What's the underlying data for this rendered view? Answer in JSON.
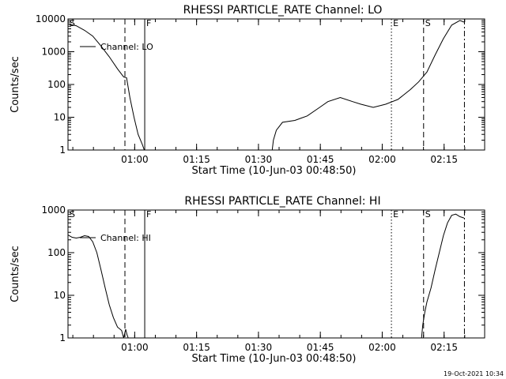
{
  "chart_data": [
    {
      "type": "line",
      "title": "RHESSI PARTICLE_RATE Channel: LO",
      "xlabel": "Start Time (10-Jun-03 00:48:50)",
      "ylabel": "Counts/sec",
      "xlim_min": [
        -5,
        96
      ],
      "ylim": [
        1,
        10000
      ],
      "y_scale": "log",
      "x_ticks": [
        {
          "label": "01:00",
          "min": 11.17
        },
        {
          "label": "01:15",
          "min": 26.17
        },
        {
          "label": "01:30",
          "min": 41.17
        },
        {
          "label": "01:45",
          "min": 56.17
        },
        {
          "label": "02:00",
          "min": 71.17
        },
        {
          "label": "02:15",
          "min": 86.17
        }
      ],
      "y_ticks": [
        {
          "label": "1",
          "v": 1
        },
        {
          "label": "10",
          "v": 10
        },
        {
          "label": "100",
          "v": 100
        },
        {
          "label": "1000",
          "v": 1000
        },
        {
          "label": "10000",
          "v": 10000
        }
      ],
      "legend": {
        "label": "Channel: LO",
        "position": "top-left"
      },
      "event_lines": [
        {
          "label": "S",
          "min": -5,
          "style": "dashdot"
        },
        {
          "label": "",
          "min": 8.8,
          "style": "dash"
        },
        {
          "label": "F",
          "min": 13.6,
          "style": "solid"
        },
        {
          "label": "E",
          "min": 73.4,
          "style": "dot"
        },
        {
          "label": "S",
          "min": 81.2,
          "style": "dash"
        },
        {
          "label": "",
          "min": 91.1,
          "style": "dashdot"
        }
      ],
      "series": [
        {
          "name": "Channel: LO",
          "segments": [
            {
              "x": [
                -5,
                -3,
                -1,
                1,
                3,
                5,
                7,
                8.5,
                9.2,
                10,
                11,
                12,
                13,
                13.5
              ],
              "y": [
                7000,
                6200,
                4500,
                3000,
                1500,
                700,
                300,
                170,
                160,
                40,
                10,
                3,
                1.5,
                1
              ]
            },
            {
              "x": [
                44.5,
                44.8,
                45.5,
                47,
                50,
                53,
                56,
                58,
                61,
                64,
                66,
                69,
                72,
                75,
                78,
                80,
                82,
                84,
                86,
                88,
                90,
                91
              ],
              "y": [
                1,
                2,
                4,
                7,
                8,
                11,
                20,
                30,
                40,
                30,
                25,
                20,
                25,
                35,
                70,
                120,
                240,
                800,
                2500,
                6500,
                9000,
                8000
              ]
            }
          ]
        }
      ]
    },
    {
      "type": "line",
      "title": "RHESSI PARTICLE_RATE Channel: HI",
      "xlabel": "Start Time (10-Jun-03 00:48:50)",
      "ylabel": "Counts/sec",
      "xlim_min": [
        -5,
        96
      ],
      "ylim": [
        1,
        1000
      ],
      "y_scale": "log",
      "x_ticks": [
        {
          "label": "01:00",
          "min": 11.17
        },
        {
          "label": "01:15",
          "min": 26.17
        },
        {
          "label": "01:30",
          "min": 41.17
        },
        {
          "label": "01:45",
          "min": 56.17
        },
        {
          "label": "02:00",
          "min": 71.17
        },
        {
          "label": "02:15",
          "min": 86.17
        }
      ],
      "y_ticks": [
        {
          "label": "1",
          "v": 1
        },
        {
          "label": "10",
          "v": 10
        },
        {
          "label": "100",
          "v": 100
        },
        {
          "label": "1000",
          "v": 1000
        }
      ],
      "legend": {
        "label": "Channel: HI",
        "position": "top-left"
      },
      "event_lines": [
        {
          "label": "S",
          "min": -5,
          "style": "dashdot"
        },
        {
          "label": "",
          "min": 8.8,
          "style": "dash"
        },
        {
          "label": "F",
          "min": 13.6,
          "style": "solid"
        },
        {
          "label": "E",
          "min": 73.4,
          "style": "dot"
        },
        {
          "label": "S",
          "min": 81.2,
          "style": "dash"
        },
        {
          "label": "",
          "min": 91.1,
          "style": "dashdot"
        }
      ],
      "series": [
        {
          "name": "Channel: HI",
          "segments": [
            {
              "x": [
                -5,
                -4,
                -3,
                -2,
                -1,
                0,
                1,
                2,
                3,
                4,
                5,
                6,
                7,
                8,
                8.5,
                9,
                9.3,
                9.6
              ],
              "y": [
                260,
                230,
                220,
                230,
                250,
                240,
                180,
                100,
                40,
                15,
                6,
                3,
                1.8,
                1.5,
                1,
                1.6,
                1.2,
                1
              ]
            },
            {
              "x": [
                80.7,
                81,
                81.5,
                82,
                83,
                84,
                85,
                86,
                87,
                88,
                89,
                90,
                91
              ],
              "y": [
                1,
                2,
                4,
                7,
                15,
                40,
                100,
                250,
                500,
                750,
                800,
                700,
                650
              ]
            }
          ]
        }
      ]
    }
  ],
  "footer_timestamp": "19-Oct-2021 10:34"
}
